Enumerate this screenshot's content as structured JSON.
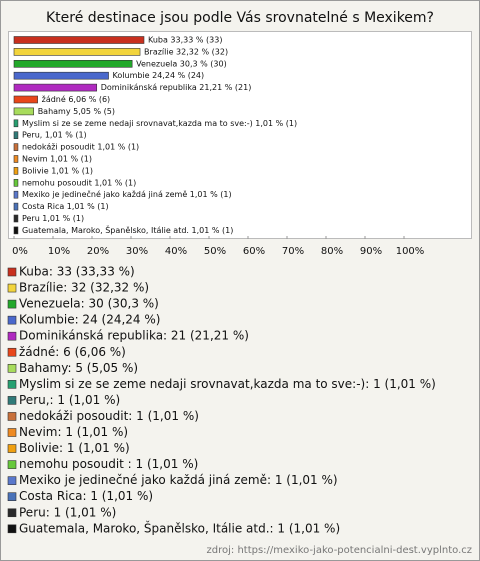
{
  "chart_data": {
    "type": "bar",
    "orientation": "horizontal",
    "title": "Které destinace jsou podle Vás srovnatelné s Mexikem?",
    "categories": [
      "Kuba",
      "Brazílie",
      "Venezuela",
      "Kolumbie",
      "Dominikánská republika",
      "žádné",
      "Bahamy",
      "Myslim si ze se zeme nedaji srovnavat,kazda ma to sve:-)",
      "Peru,",
      "nedokáži posoudit",
      "Nevim",
      "Bolivie",
      "nemohu posoudit",
      "Mexiko je jedinečné jako každá jiná země",
      "Costa Rica",
      "Peru",
      "Guatemala, Maroko, Španělsko, Itálie atd."
    ],
    "values": [
      33.33,
      32.32,
      30.3,
      24.24,
      21.21,
      6.06,
      5.05,
      1.01,
      1.01,
      1.01,
      1.01,
      1.01,
      1.01,
      1.01,
      1.01,
      1.01,
      1.01
    ],
    "value_labels": [
      "Kuba 33,33 % (33)",
      "Brazílie 32,32 % (32)",
      "Venezuela 30,3 % (30)",
      "Kolumbie 24,24 % (24)",
      "Dominikánská republika 21,21 % (21)",
      "žádné 6,06 % (6)",
      "Bahamy 5,05 % (5)",
      "Myslim si ze se zeme nedaji srovnavat,kazda ma to sve:-) 1,01 % (1)",
      "Peru, 1,01 % (1)",
      "nedokáži posoudit 1,01 % (1)",
      "Nevim 1,01 % (1)",
      "Bolivie 1,01 % (1)",
      "nemohu posoudit  1,01 % (1)",
      "Mexiko je jedinečné jako každá jiná země 1,01 % (1)",
      "Costa Rica 1,01 % (1)",
      "Peru 1,01 % (1)",
      "Guatemala, Maroko, Španělsko, Itálie atd. 1,01 % (1)"
    ],
    "colors": [
      "#c8301e",
      "#f2d43c",
      "#22a82a",
      "#4a68cc",
      "#b02ac0",
      "#e8461a",
      "#a8dc5c",
      "#26a070",
      "#2f7a78",
      "#c8703a",
      "#ee8a22",
      "#f0a010",
      "#66c83a",
      "#5a78cc",
      "#4a72b8",
      "#2a2a2a",
      "#111111"
    ],
    "legend": [
      "Kuba: 33 (33,33 %)",
      "Brazílie: 32 (32,32 %)",
      "Venezuela: 30 (30,3 %)",
      "Kolumbie: 24 (24,24 %)",
      "Dominikánská republika: 21 (21,21 %)",
      "žádné: 6 (6,06 %)",
      "Bahamy: 5 (5,05 %)",
      "Myslim si ze se zeme nedaji srovnavat,kazda ma to sve:-): 1 (1,01 %)",
      "Peru,: 1 (1,01 %)",
      "nedokáži posoudit: 1 (1,01 %)",
      "Nevim: 1 (1,01 %)",
      "Bolivie: 1 (1,01 %)",
      "nemohu posoudit : 1 (1,01 %)",
      "Mexiko je jedinečné jako každá jiná země: 1 (1,01 %)",
      "Costa Rica: 1 (1,01 %)",
      "Peru: 1 (1,01 %)",
      "Guatemala, Maroko, Španělsko, Itálie atd.: 1 (1,01 %)"
    ],
    "xlim": [
      0,
      100
    ],
    "xticks": [
      {
        "value": 0,
        "label": "0%"
      },
      {
        "value": 10,
        "label": "10%"
      },
      {
        "value": 20,
        "label": "20%"
      },
      {
        "value": 30,
        "label": "30%"
      },
      {
        "value": 40,
        "label": "40%"
      },
      {
        "value": 50,
        "label": "50%"
      },
      {
        "value": 60,
        "label": "60%"
      },
      {
        "value": 70,
        "label": "70%"
      },
      {
        "value": 80,
        "label": "80%"
      },
      {
        "value": 90,
        "label": "90%"
      },
      {
        "value": 100,
        "label": "100%"
      }
    ],
    "source": "zdroj: https://mexiko-jako-potencialni-dest.vyplnto.cz"
  }
}
